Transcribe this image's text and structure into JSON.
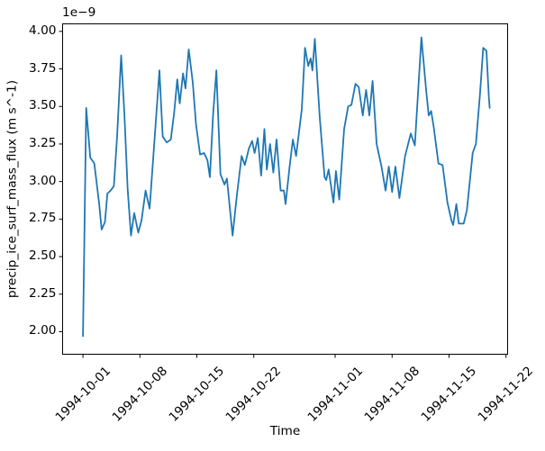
{
  "figure": {
    "offset_text": "1e−9",
    "background_color": "#ffffff",
    "frame_color": "#000000"
  },
  "chart_data": {
    "type": "line",
    "title": "",
    "xlabel": "Time",
    "ylabel": "precip_ice_surf_mass_flux (m s^-1)",
    "unit": "m s^-1",
    "y_scale_factor": "1e-9",
    "line_color": "#1f77b4",
    "grid": false,
    "legend": false,
    "x_unit": "days since 1994-10-01",
    "xlim": [
      -2.5,
      52.2
    ],
    "ylim": [
      1.85,
      4.05
    ],
    "xticks": [
      {
        "t": 0,
        "label": "1994-10-01"
      },
      {
        "t": 7,
        "label": "1994-10-08"
      },
      {
        "t": 14,
        "label": "1994-10-15"
      },
      {
        "t": 21,
        "label": "1994-10-22"
      },
      {
        "t": 31,
        "label": "1994-11-01"
      },
      {
        "t": 38,
        "label": "1994-11-08"
      },
      {
        "t": 45,
        "label": "1994-11-15"
      },
      {
        "t": 52,
        "label": "1994-11-22"
      }
    ],
    "yticks": [
      {
        "value": 2.0,
        "label": "2.00"
      },
      {
        "value": 2.25,
        "label": "2.25"
      },
      {
        "value": 2.5,
        "label": "2.50"
      },
      {
        "value": 2.75,
        "label": "2.75"
      },
      {
        "value": 3.0,
        "label": "3.00"
      },
      {
        "value": 3.25,
        "label": "3.25"
      },
      {
        "value": 3.5,
        "label": "3.50"
      },
      {
        "value": 3.75,
        "label": "3.75"
      },
      {
        "value": 4.0,
        "label": "4.00"
      }
    ],
    "series": [
      {
        "name": "precip_ice_surf_mass_flux",
        "values_scale": "1e-9",
        "x": [
          0,
          0.4,
          0.9,
          1.4,
          2,
          2.3,
          2.7,
          3,
          3.4,
          3.8,
          4.2,
          4.7,
          5.1,
          5.5,
          5.9,
          6.3,
          6.8,
          7.2,
          7.7,
          8.2,
          8.7,
          9.4,
          9.8,
          10.3,
          10.8,
          11.2,
          11.6,
          11.9,
          12.3,
          12.6,
          13,
          13.5,
          13.9,
          14.4,
          14.9,
          15.3,
          15.6,
          16,
          16.4,
          16.9,
          17.4,
          17.7,
          18.4,
          18.9,
          19.5,
          19.9,
          20.4,
          20.8,
          21.1,
          21.5,
          21.9,
          22.3,
          22.6,
          23,
          23.4,
          23.8,
          24.3,
          24.7,
          24.9,
          25.4,
          25.8,
          26.2,
          26.9,
          27.3,
          27.7,
          28,
          28.2,
          28.5,
          29.1,
          29.7,
          29.9,
          30.2,
          30.8,
          31.1,
          31.5,
          32.1,
          32.6,
          33,
          33.5,
          33.9,
          34.4,
          34.8,
          35.2,
          35.6,
          36.1,
          36.7,
          37.2,
          37.6,
          38,
          38.4,
          38.9,
          39.6,
          40.3,
          40.8,
          41.6,
          42.2,
          42.5,
          42.8,
          43.1,
          43.7,
          44.2,
          44.8,
          45.3,
          45.5,
          45.9,
          46.2,
          46.8,
          47.2,
          47.9,
          48.3,
          48.8,
          49.2,
          49.6,
          49.9,
          50
        ],
        "values": [
          1.97,
          3.49,
          3.16,
          3.12,
          2.85,
          2.68,
          2.73,
          2.92,
          2.94,
          2.97,
          3.3,
          3.84,
          3.45,
          2.95,
          2.64,
          2.79,
          2.66,
          2.74,
          2.94,
          2.82,
          3.2,
          3.74,
          3.3,
          3.26,
          3.28,
          3.45,
          3.68,
          3.52,
          3.72,
          3.62,
          3.88,
          3.66,
          3.38,
          3.18,
          3.19,
          3.14,
          3.03,
          3.45,
          3.74,
          3.05,
          2.98,
          3.02,
          2.64,
          2.9,
          3.17,
          3.11,
          3.22,
          3.27,
          3.19,
          3.29,
          3.04,
          3.35,
          3.08,
          3.25,
          3.06,
          3.28,
          2.94,
          2.94,
          2.85,
          3.1,
          3.28,
          3.17,
          3.48,
          3.89,
          3.77,
          3.82,
          3.74,
          3.95,
          3.43,
          3.03,
          3.01,
          3.08,
          2.86,
          3.07,
          2.88,
          3.35,
          3.5,
          3.51,
          3.65,
          3.63,
          3.44,
          3.61,
          3.44,
          3.67,
          3.25,
          3.1,
          2.94,
          3.1,
          2.93,
          3.1,
          2.89,
          3.17,
          3.32,
          3.24,
          3.96,
          3.6,
          3.44,
          3.47,
          3.37,
          3.12,
          3.11,
          2.86,
          2.74,
          2.71,
          2.85,
          2.72,
          2.72,
          2.81,
          3.19,
          3.25,
          3.58,
          3.89,
          3.87,
          3.56,
          3.49
        ]
      }
    ]
  }
}
